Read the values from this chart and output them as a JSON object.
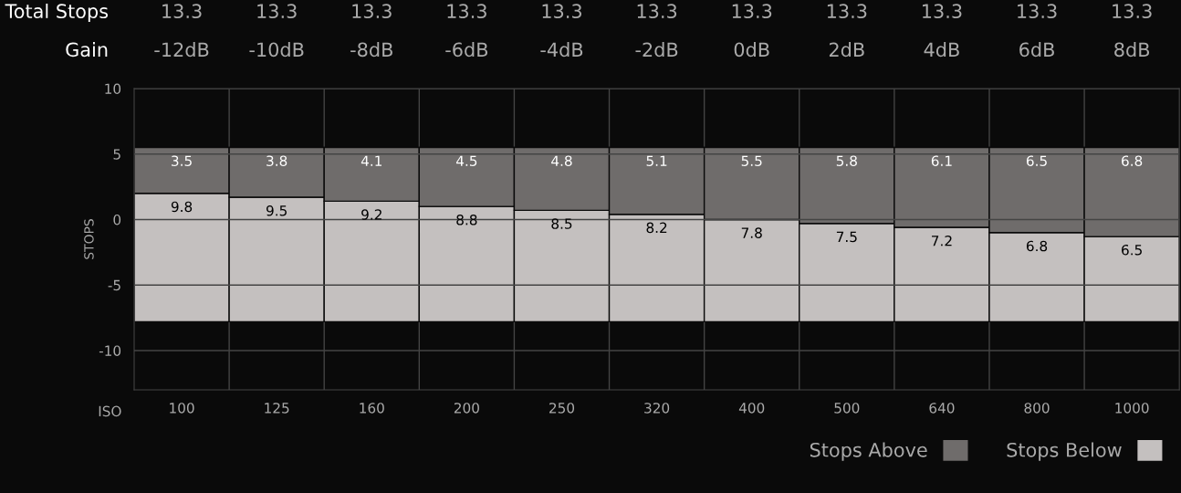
{
  "chart_data": {
    "type": "bar",
    "xlabel": "ISO",
    "ylabel": "STOPS",
    "categories": [
      "100",
      "125",
      "160",
      "200",
      "250",
      "320",
      "400",
      "500",
      "640",
      "800",
      "1000"
    ],
    "series": [
      {
        "name": "Stops Below",
        "color": "#c4c0bf",
        "base": [
          -7.8,
          -7.8,
          -7.8,
          -7.8,
          -7.8,
          -7.8,
          -7.8,
          -7.8,
          -7.8,
          -7.8,
          -7.8
        ],
        "values": [
          9.8,
          9.5,
          9.2,
          8.8,
          8.5,
          8.2,
          7.8,
          7.5,
          7.2,
          6.8,
          6.5
        ]
      },
      {
        "name": "Stops Above",
        "color": "#6f6c6b",
        "base": [
          2.0,
          1.7,
          1.4,
          1.0,
          0.7,
          0.4,
          0.0,
          -0.3,
          -0.6,
          -1.0,
          -1.3
        ],
        "values": [
          3.5,
          3.8,
          4.1,
          4.5,
          4.8,
          5.1,
          5.5,
          5.8,
          6.1,
          6.5,
          6.8
        ]
      }
    ],
    "annotations": [
      "Total Stops",
      "13.3",
      "13.3",
      "13.3",
      "13.3",
      "13.3",
      "13.3",
      "13.3",
      "13.3",
      "13.3",
      "13.3",
      "13.3",
      "Gain",
      "-12dB",
      "-10dB",
      "-8dB",
      "-6dB",
      "-4dB",
      "-2dB",
      "0dB",
      "2dB",
      "4dB",
      "6dB",
      "8dB"
    ],
    "ylim": [
      -13,
      10
    ],
    "yticks": [
      -10,
      -5,
      0,
      5,
      10
    ],
    "grid": true,
    "data_labels": true,
    "legend": "bottom right"
  }
}
